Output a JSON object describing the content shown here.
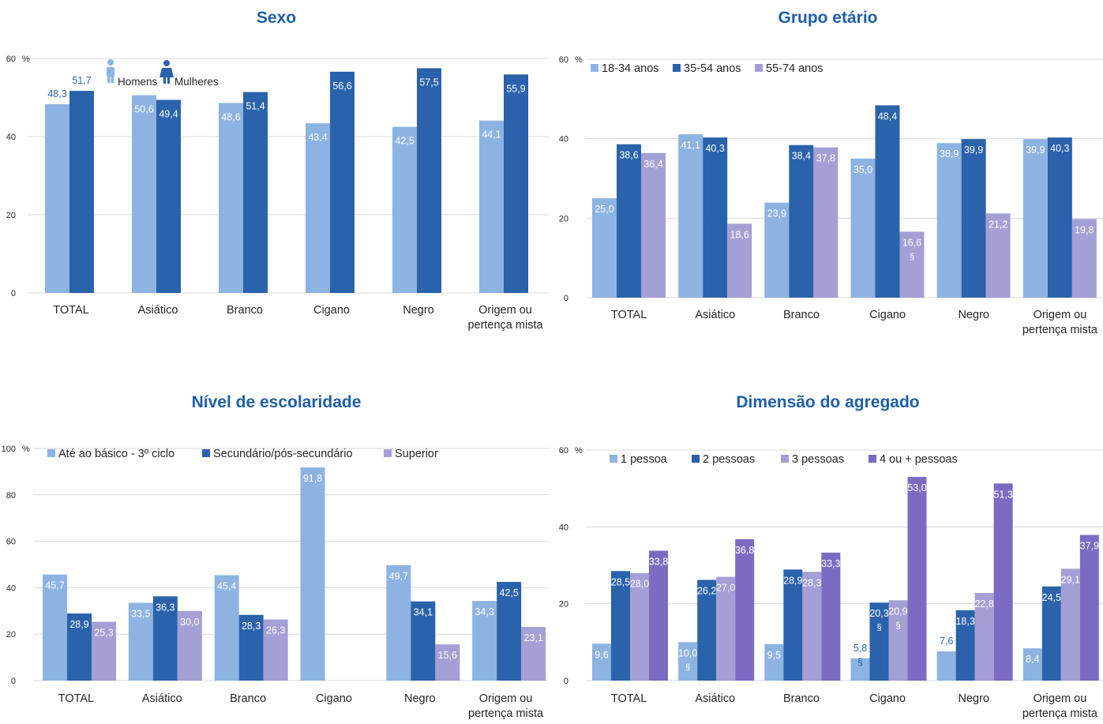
{
  "colors": {
    "title": "#1f5fa8",
    "light_blue": "#8db3e2",
    "dark_blue": "#2a62ab",
    "lavender": "#a49fd4",
    "purple": "#7c6bc2",
    "axis_text": "#262626",
    "grid": "#d9d9d9",
    "label_blue": "#2a62ab",
    "label_white": "#ffffff"
  },
  "chart_data": [
    {
      "type": "bar",
      "title": "Sexo",
      "unit": "%",
      "ylim": [
        0,
        60
      ],
      "yticks": [
        0,
        20,
        40,
        60
      ],
      "grid": true,
      "legend_placement": "top-left",
      "legend_icons": [
        "male-person-icon",
        "female-person-icon"
      ],
      "categories": [
        "TOTAL",
        "Asiático",
        "Branco",
        "Cigano",
        "Negro",
        "Origem ou\npertença mista"
      ],
      "series": [
        {
          "name": "Homens",
          "values": [
            48.3,
            50.6,
            48.6,
            43.4,
            42.5,
            44.1
          ],
          "labels": [
            "48,3",
            "50,6",
            "48,6",
            "43,4",
            "42,5",
            "44,1"
          ]
        },
        {
          "name": "Mulheres",
          "values": [
            51.7,
            49.4,
            51.4,
            56.6,
            57.5,
            55.9
          ],
          "labels": [
            "51,7",
            "49,4",
            "51,4",
            "56,6",
            "57,5",
            "55,9"
          ]
        }
      ]
    },
    {
      "type": "bar",
      "title": "Grupo etário",
      "unit": "%",
      "ylim": [
        0,
        60
      ],
      "yticks": [
        0,
        20,
        40,
        60
      ],
      "grid": true,
      "legend_placement": "top-left",
      "categories": [
        "TOTAL",
        "Asiático",
        "Branco",
        "Cigano",
        "Negro",
        "Origem ou\npertença mista"
      ],
      "series": [
        {
          "name": "18-34 anos",
          "values": [
            25.0,
            41.1,
            23.9,
            35.0,
            38.9,
            39.9
          ],
          "labels": [
            "25,0",
            "41,1",
            "23,9",
            "35,0",
            "38,9",
            "39,9"
          ]
        },
        {
          "name": "35-54 anos",
          "values": [
            38.6,
            40.3,
            38.4,
            48.4,
            39.9,
            40.3
          ],
          "labels": [
            "38,6",
            "40,3",
            "38,4",
            "48,4",
            "39,9",
            "40,3"
          ]
        },
        {
          "name": "55-74 anos",
          "values": [
            36.4,
            18.6,
            37.8,
            16.6,
            21.2,
            19.8
          ],
          "labels": [
            "36,4",
            "18,6",
            "37,8",
            "16,6",
            "21,2",
            "19,8"
          ],
          "notes": [
            "",
            "",
            "",
            "§",
            "",
            ""
          ]
        }
      ]
    },
    {
      "type": "bar",
      "title": "Nível de escolaridade",
      "unit": "%",
      "ylim": [
        0,
        100
      ],
      "yticks": [
        0,
        20,
        40,
        60,
        80,
        100
      ],
      "grid": true,
      "legend_placement": "top-left",
      "categories": [
        "TOTAL",
        "Asiático",
        "Branco",
        "Cigano",
        "Negro",
        "Origem ou\npertença mista"
      ],
      "series": [
        {
          "name": "Até ao básico - 3º ciclo",
          "values": [
            45.7,
            33.5,
            45.4,
            91.8,
            49.7,
            34.3
          ],
          "labels": [
            "45,7",
            "33,5",
            "45,4",
            "91,8",
            "49,7",
            "34,3"
          ]
        },
        {
          "name": "Secundário/pós-secundário",
          "values": [
            28.9,
            36.3,
            28.3,
            null,
            34.1,
            42.5
          ],
          "labels": [
            "28,9",
            "36,3",
            "28,3",
            "",
            "34,1",
            "42,5"
          ]
        },
        {
          "name": "Superior",
          "values": [
            25.3,
            30.0,
            26.3,
            null,
            15.6,
            23.1
          ],
          "labels": [
            "25,3",
            "30,0",
            "26,3",
            "",
            "15,6",
            "23,1"
          ]
        }
      ]
    },
    {
      "type": "bar",
      "title": "Dimensão do agregado",
      "unit": "%",
      "ylim": [
        0,
        60
      ],
      "yticks": [
        0,
        20,
        40,
        60
      ],
      "grid": true,
      "legend_placement": "top-left",
      "categories": [
        "TOTAL",
        "Asiático",
        "Branco",
        "Cigano",
        "Negro",
        "Origem ou\npertença mista"
      ],
      "series": [
        {
          "name": "1 pessoa",
          "values": [
            9.6,
            10.0,
            9.5,
            5.8,
            7.6,
            8.4
          ],
          "labels": [
            "9,6",
            "10,0",
            "9,5",
            "5,8",
            "7,6",
            "8,4"
          ],
          "notes": [
            "",
            "§",
            "",
            "§",
            "",
            ""
          ]
        },
        {
          "name": "2 pessoas",
          "values": [
            28.5,
            26.2,
            28.9,
            20.3,
            18.3,
            24.5
          ],
          "labels": [
            "28,5",
            "26,2",
            "28,9",
            "20,3",
            "18,3",
            "24,5"
          ],
          "notes": [
            "",
            "",
            "",
            "§",
            "",
            ""
          ]
        },
        {
          "name": "3 pessoas",
          "values": [
            28.0,
            27.0,
            28.3,
            20.9,
            22.8,
            29.1
          ],
          "labels": [
            "28,0",
            "27,0",
            "28,3",
            "20,9",
            "22,8",
            "29,1"
          ],
          "notes": [
            "",
            "",
            "",
            "§",
            "",
            ""
          ]
        },
        {
          "name": "4 ou + pessoas",
          "values": [
            33.8,
            36.8,
            33.3,
            53.0,
            51.3,
            37.9
          ],
          "labels": [
            "33,8",
            "36,8",
            "33,3",
            "53,0",
            "51,3",
            "37,9"
          ]
        }
      ]
    }
  ]
}
